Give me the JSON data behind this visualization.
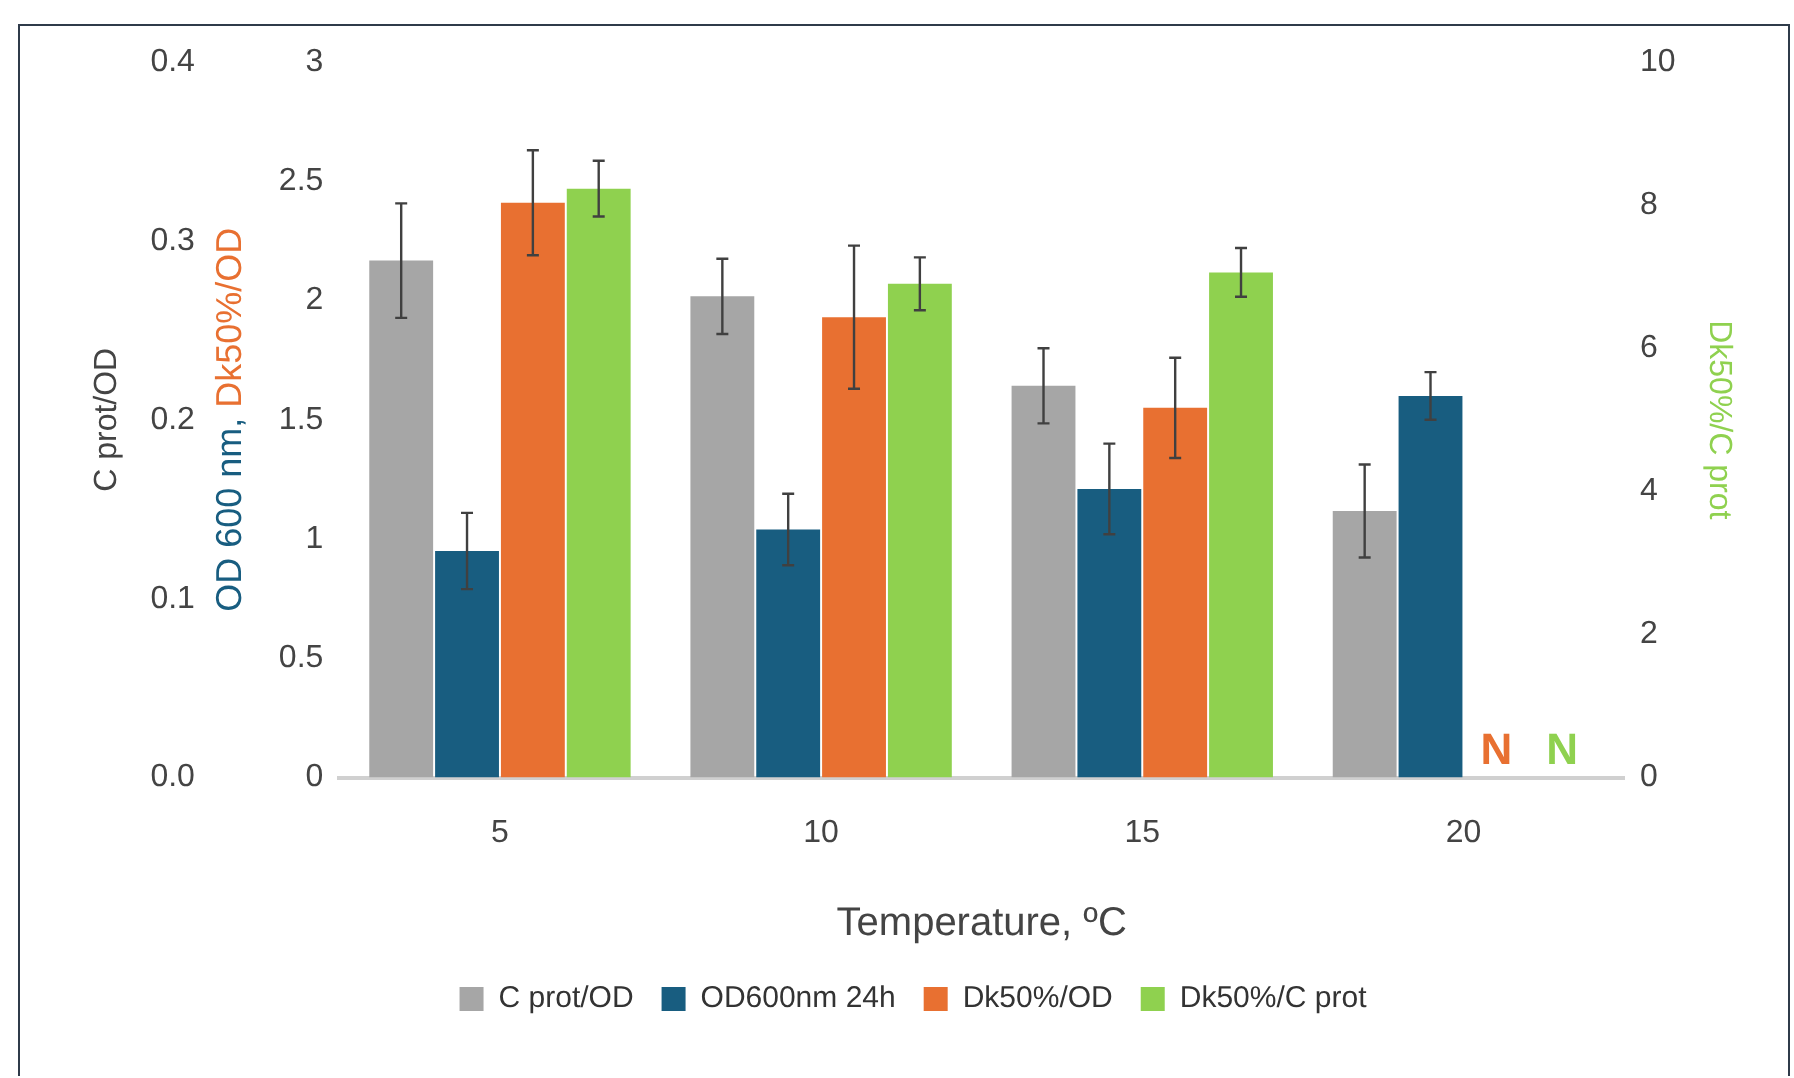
{
  "chart_data": {
    "type": "bar",
    "xlabel": "Temperature, ºC",
    "ylabel": "OD 600 nm, Dk50%/OD",
    "y2label": "Dk50%/C prot",
    "y3label": "C prot/OD",
    "categories": [
      "5",
      "10",
      "15",
      "20"
    ],
    "series": [
      {
        "name": "C prot/OD",
        "color": "#a6a6a6",
        "axis": "y3",
        "values": [
          0.289,
          0.269,
          0.219,
          0.149
        ],
        "errors": [
          0.032,
          0.021,
          0.021,
          0.026
        ]
      },
      {
        "name": "OD600nm 24h",
        "color": "#185d80",
        "values": [
          0.95,
          1.04,
          1.21,
          1.6
        ],
        "errors": [
          0.16,
          0.15,
          0.19,
          0.1
        ]
      },
      {
        "name": "Dk50%/OD",
        "color": "#e87031",
        "values": [
          2.41,
          1.93,
          1.55,
          null
        ],
        "errors": [
          0.22,
          0.3,
          0.21,
          null
        ]
      },
      {
        "name": "Dk50%/C prot",
        "color": "#8fd14f",
        "axis": "y2",
        "values": [
          8.23,
          6.9,
          7.06,
          null
        ],
        "errors": [
          0.39,
          0.37,
          0.34,
          null
        ]
      }
    ],
    "ylim": [
      0,
      3
    ],
    "yticks": [
      0,
      0.5,
      1,
      1.5,
      2,
      2.5,
      3
    ],
    "y2lim": [
      0,
      10
    ],
    "y2ticks": [
      0,
      2,
      4,
      6,
      8,
      10
    ],
    "y3lim": [
      0,
      0.4
    ],
    "y3ticks": [
      {
        "value": 0,
        "label": "0.0"
      },
      0.1,
      0.2,
      0.3,
      0.4
    ],
    "annotations": [
      {
        "text": "N",
        "x": "20",
        "y": 0
      },
      {
        "text": "N",
        "x": "20",
        "y": 0
      }
    ],
    "grid": false,
    "legend": "bottom"
  }
}
